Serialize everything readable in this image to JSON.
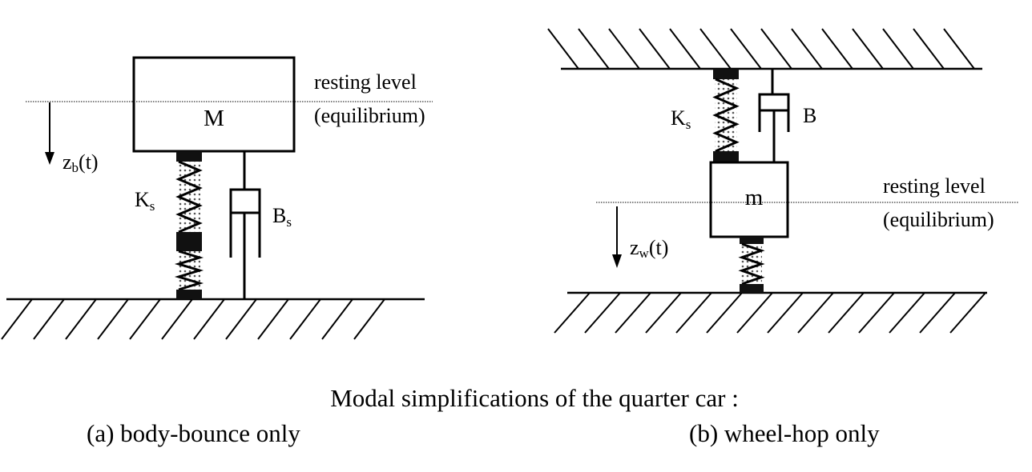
{
  "left": {
    "mass": "M",
    "spring_main": "K",
    "spring_sub": "s",
    "damper_main": "B",
    "damper_sub": "s",
    "disp_main": "z",
    "disp_sub": "b",
    "disp_arg": "(t)",
    "level_line1": "resting level",
    "level_line2": "(equilibrium)"
  },
  "right": {
    "mass": "m",
    "spring_main": "K",
    "spring_sub": "s",
    "damper_main": "B",
    "disp_main": "z",
    "disp_sub": "w",
    "disp_arg": "(t)",
    "level_line1": "resting level",
    "level_line2": "(equilibrium)"
  },
  "caption": {
    "title": "Modal simplifications of the quarter car :",
    "left": "(a) body-bounce only",
    "right": "(b) wheel-hop only"
  }
}
